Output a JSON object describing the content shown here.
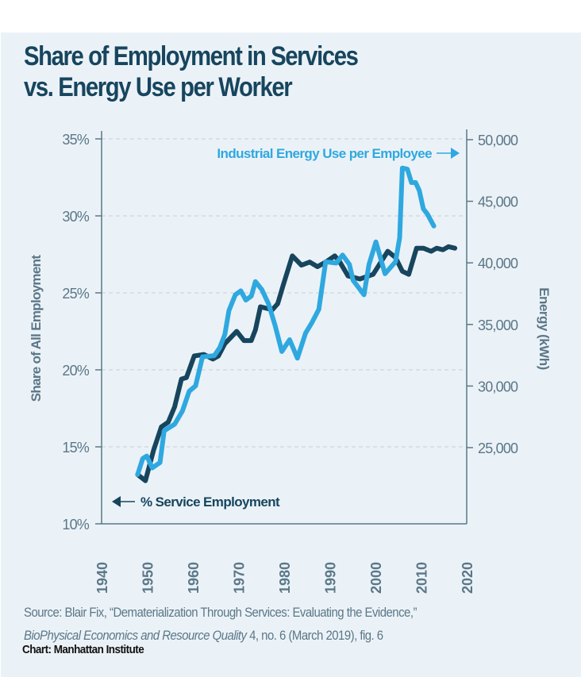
{
  "title_line1": "Share of Employment in Services",
  "title_line2": "vs. Energy Use per Worker",
  "source_prefix": "Source: Blair Fix, “Dematerialization Through Services: Evaluating the Evidence,”",
  "source_journal": "BioPhysical Economics and Resource Quality",
  "source_suffix": " 4, no. 6 (March 2019), fig. 6",
  "credit": "Chart: Manhattan Institute",
  "colors": {
    "service": "#17455e",
    "energy": "#2fa8e0",
    "axis": "#5b7788",
    "background": "#ebf2f7"
  },
  "chart_data": {
    "type": "line",
    "title": "Share of Employment in Services vs. Energy Use per Worker",
    "xlabel": "",
    "x_ticks": [
      "1940",
      "1950",
      "1960",
      "1970",
      "1980",
      "1990",
      "2000",
      "2010",
      "2020"
    ],
    "xlim": [
      1940,
      2020
    ],
    "ylabel_left": "Share of All Employment",
    "ylim_left": [
      10,
      35
    ],
    "y_ticks_left": [
      "10%",
      "15%",
      "20%",
      "25%",
      "30%",
      "35%"
    ],
    "ylabel_right": "Energy (kWh)",
    "ylim_right": [
      18800,
      50000
    ],
    "y_ticks_right": [
      "25,000",
      "30,000",
      "35,000",
      "40,000",
      "45,000",
      "50,000"
    ],
    "grid": "horizontal dashed",
    "series": [
      {
        "name": "% Service Employment",
        "axis": "left",
        "annotation_arrow": "left",
        "x": [
          1947.9,
          1949.6,
          1951.4,
          1953.1,
          1954.6,
          1956,
          1957.5,
          1958.6,
          1960.3,
          1962.4,
          1964.4,
          1965.6,
          1967,
          1969.6,
          1971.2,
          1972.8,
          1973.7,
          1974.8,
          1977.4,
          1978.6,
          1979.8,
          1981.8,
          1983.8,
          1985.6,
          1987.3,
          1989.1,
          1991.1,
          1992.2,
          1994,
          1996.6,
          1999.5,
          2001.2,
          2002.7,
          2004.4,
          2005.9,
          2007.3,
          2009,
          2010.5,
          2012.2,
          2013.4,
          2014.8,
          2016,
          2017.4
        ],
        "y": [
          13.2,
          12.8,
          14.8,
          16.3,
          16.6,
          17.6,
          19.4,
          19.5,
          20.9,
          21.0,
          20.7,
          20.9,
          21.7,
          22.5,
          21.9,
          21.9,
          22.6,
          24.1,
          23.9,
          24.3,
          25.5,
          27.4,
          26.8,
          27.0,
          26.7,
          27.0,
          27.4,
          27.0,
          26.1,
          25.9,
          26.2,
          27.0,
          27.7,
          27.3,
          26.4,
          26.2,
          27.9,
          27.9,
          27.7,
          27.9,
          27.8,
          28.0,
          27.9
        ]
      },
      {
        "name": "Industrial Energy Use per Employee",
        "axis": "right",
        "annotation_arrow": "right",
        "x": [
          1947.9,
          1949,
          1949.9,
          1951.1,
          1952.8,
          1953.7,
          1956,
          1957.7,
          1959.2,
          1960.6,
          1962.1,
          1964.7,
          1965.9,
          1967,
          1967.9,
          1969.3,
          1970.5,
          1971.6,
          1972.8,
          1973.7,
          1975.1,
          1976.6,
          1978,
          1979.5,
          1981.2,
          1982.9,
          1984.7,
          1986.1,
          1987.6,
          1989.1,
          1991.4,
          1992.8,
          1994.3,
          1995.1,
          1997.5,
          1998.6,
          2000.1,
          2002.1,
          2004.4,
          2005.3,
          2005.9,
          2007,
          2007.9,
          2008.8,
          2009.6,
          2010.5,
          2011.4,
          2012.8
        ],
        "y": [
          22820,
          24110,
          24320,
          23360,
          23790,
          26360,
          26900,
          27970,
          29580,
          30010,
          32370,
          32470,
          33120,
          34190,
          36120,
          37410,
          37730,
          36980,
          37300,
          38480,
          37840,
          36660,
          34940,
          32800,
          33760,
          32260,
          34300,
          35160,
          36230,
          40090,
          39980,
          40630,
          39880,
          38590,
          37410,
          39880,
          41700,
          39120,
          40090,
          42020,
          47700,
          47600,
          46520,
          46520,
          45880,
          44380,
          43950,
          42990
        ]
      }
    ]
  }
}
